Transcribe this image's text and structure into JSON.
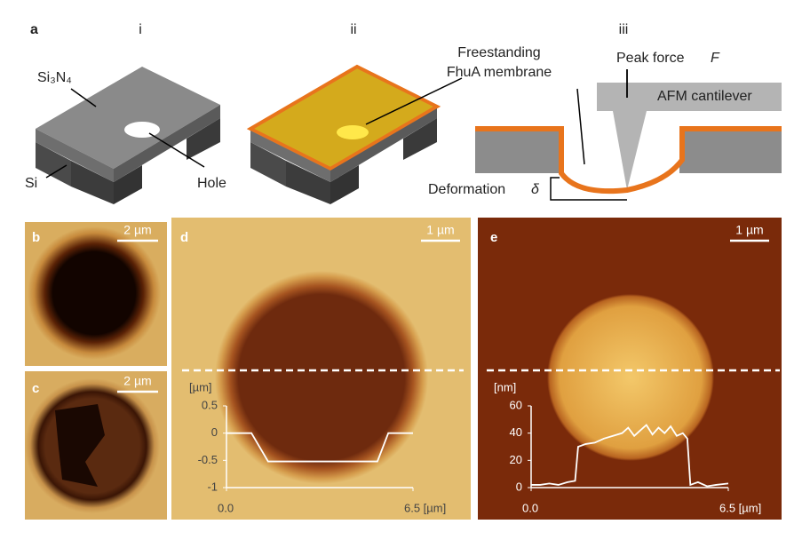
{
  "figure": {
    "panel_a": {
      "label": "a",
      "steps": [
        "i",
        "ii",
        "iii"
      ],
      "material_top": "Si₃N₄",
      "material_base": "Si",
      "hole": "Hole",
      "membrane": [
        "Freestanding",
        "FhuA membrane"
      ],
      "force": [
        "Peak force",
        "F"
      ],
      "cantilever": "AFM cantilever",
      "deformation": [
        "Deformation",
        "δ"
      ]
    },
    "panel_b": {
      "label": "b",
      "scale_bar": "2 µm"
    },
    "panel_c": {
      "label": "c",
      "scale_bar": "2 µm"
    },
    "panel_d": {
      "label": "d",
      "scale_bar": "1 µm",
      "profile": {
        "type": "line",
        "y_unit": "[µm]",
        "color": "#ffffff",
        "x": [
          0,
          0.87,
          1.45,
          5.26,
          5.64,
          6.5
        ],
        "values": [
          0,
          0,
          -0.52,
          -0.52,
          0,
          0
        ],
        "xlim": [
          0,
          6.5
        ],
        "ylim": [
          -1,
          0.5
        ],
        "xticks": [
          {
            "value": 0,
            "label": "0.0"
          },
          {
            "value": 6.5,
            "label": "6.5 [µm]"
          }
        ],
        "yticks": [
          0.5,
          0,
          -0.5,
          -1
        ]
      }
    },
    "panel_e": {
      "label": "e",
      "scale_bar": "1 µm",
      "profile": {
        "type": "line",
        "y_unit": "[nm]",
        "color": "#ffffff",
        "x": [
          0,
          0.3,
          0.6,
          0.9,
          1.2,
          1.45,
          1.55,
          1.8,
          2.1,
          2.4,
          2.7,
          3.0,
          3.2,
          3.4,
          3.6,
          3.8,
          4.0,
          4.2,
          4.4,
          4.6,
          4.8,
          5.0,
          5.15,
          5.25,
          5.5,
          5.8,
          6.1,
          6.5
        ],
        "values": [
          2,
          2,
          3,
          2,
          4,
          5,
          30,
          32,
          33,
          36,
          38,
          40,
          44,
          38,
          42,
          46,
          39,
          44,
          40,
          45,
          38,
          40,
          36,
          2,
          4,
          1,
          2,
          3
        ],
        "xlim": [
          0,
          6.5
        ],
        "ylim": [
          0,
          60
        ],
        "xticks": [
          {
            "value": 0,
            "label": "0.0"
          },
          {
            "value": 6.5,
            "label": "6.5 [µm]"
          }
        ],
        "yticks": [
          0,
          20,
          40,
          60
        ]
      }
    }
  }
}
